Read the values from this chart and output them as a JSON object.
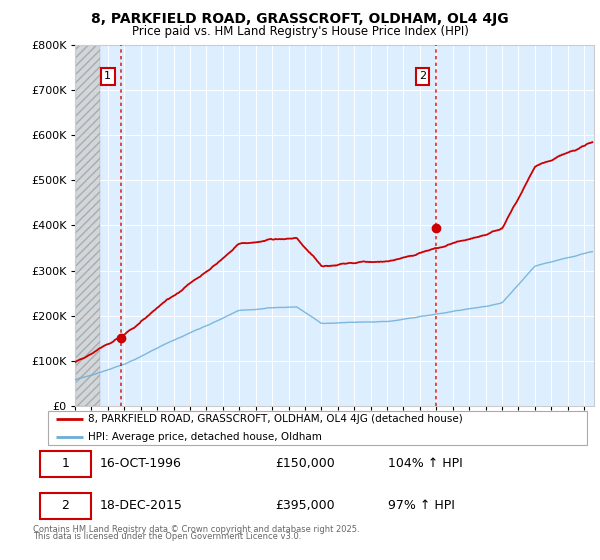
{
  "title_line1": "8, PARKFIELD ROAD, GRASSCROFT, OLDHAM, OL4 4JG",
  "title_line2": "Price paid vs. HM Land Registry's House Price Index (HPI)",
  "legend_label1": "8, PARKFIELD ROAD, GRASSCROFT, OLDHAM, OL4 4JG (detached house)",
  "legend_label2": "HPI: Average price, detached house, Oldham",
  "ann1_date": "16-OCT-1996",
  "ann1_price": 150000,
  "ann1_price_str": "£150,000",
  "ann1_hpi": "104% ↑ HPI",
  "ann1_year": 1996.79,
  "ann2_date": "18-DEC-2015",
  "ann2_price": 395000,
  "ann2_price_str": "£395,000",
  "ann2_hpi": "97% ↑ HPI",
  "ann2_year": 2015.96,
  "footnote_line1": "Contains HM Land Registry data © Crown copyright and database right 2025.",
  "footnote_line2": "This data is licensed under the Open Government Licence v3.0.",
  "hpi_color": "#6baed6",
  "price_color": "#cc0000",
  "vline_color": "#cc0000",
  "plot_bg": "#ddeeff",
  "ylim_max": 800000,
  "ytick_vals": [
    0,
    100000,
    200000,
    300000,
    400000,
    500000,
    600000,
    700000,
    800000
  ],
  "xmin": 1994,
  "xmax": 2025,
  "hatch_end": 1995.5
}
